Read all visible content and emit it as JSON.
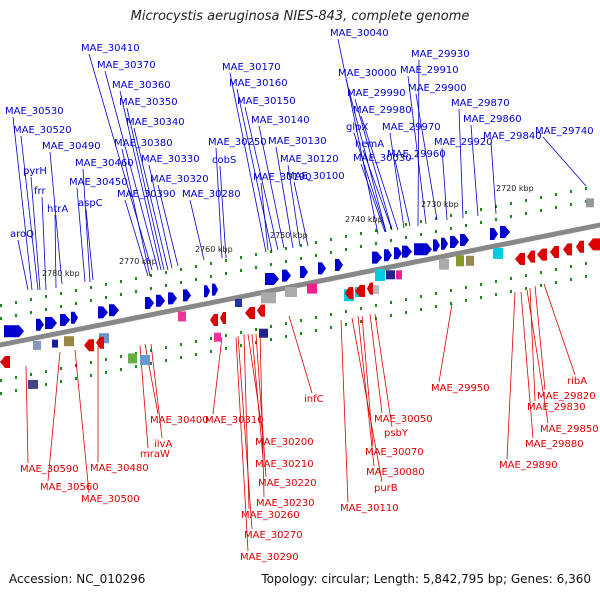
{
  "title": "Microcystis aeruginosa NIES-843, complete genome",
  "footer": {
    "accession": "Accession: NC_010296",
    "topology": "Topology: circular; Length: 5,842,795 bp; Genes: 6,360"
  },
  "colors": {
    "forward": "#0000cc",
    "reverse": "#dd0000",
    "backbone": "#888888",
    "tick": "#1a8a1a"
  },
  "ticks": [
    "2720 kbp",
    "2730 kbp",
    "2740 kbp",
    "2750 kbp",
    "2760 kbp",
    "2770 kbp",
    "2780 kbp"
  ],
  "forward_labels": [
    "MAE_30410",
    "MAE_30370",
    "MAE_30360",
    "MAE_30350",
    "MAE_30340",
    "MAE_30380",
    "MAE_30330",
    "MAE_30320",
    "MAE_30390",
    "MAE_30280",
    "MAE_30250",
    "cobS",
    "MAE_30530",
    "MAE_30520",
    "MAE_30490",
    "pyrH",
    "frr",
    "MAE_30460",
    "MAE_30450",
    "htrA",
    "aspC",
    "aroQ",
    "MAE_30170",
    "MAE_30160",
    "MAE_30150",
    "MAE_30140",
    "MAE_30130",
    "MAE_30120",
    "MAE_30190",
    "MAE_30100",
    "MAE_30040",
    "MAE_30000",
    "MAE_29990",
    "MAE_29980",
    "glpX",
    "hemA",
    "MAE_30030",
    "MAE_29930",
    "MAE_29910",
    "MAE_29900",
    "MAE_29870",
    "MAE_29970",
    "MAE_29960",
    "MAE_29920",
    "MAE_29860",
    "MAE_29840",
    "MAE_29740"
  ],
  "reverse_labels": [
    "MAE_29950",
    "ribA",
    "MAE_29820",
    "MAE_29830",
    "MAE_29850",
    "MAE_29880",
    "MAE_29890",
    "MAE_30310",
    "infC",
    "MAE_30200",
    "MAE_30210",
    "MAE_30220",
    "MAE_30230",
    "MAE_30260",
    "MAE_30270",
    "MAE_30290",
    "MAE_30050",
    "psbY",
    "MAE_30070",
    "MAE_30080",
    "purB",
    "MAE_30110",
    "MAE_30400",
    "ilvA",
    "mraW",
    "MAE_30480",
    "MAE_30590",
    "MAE_30560",
    "MAE_30500"
  ]
}
